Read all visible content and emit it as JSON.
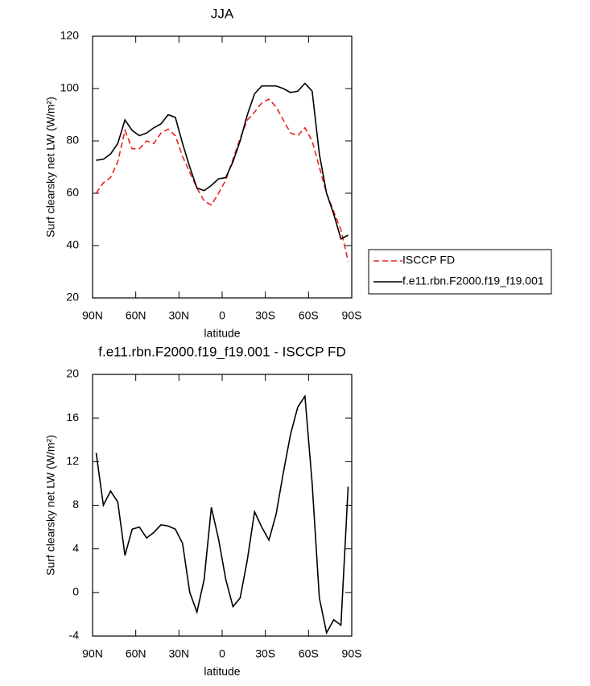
{
  "chart_data": [
    {
      "type": "line",
      "title": "JJA",
      "xlabel": "latitude",
      "ylabel": "Surf clearsky net LW (W/m²)",
      "x": [
        87.5,
        82.5,
        77.5,
        72.5,
        67.5,
        62.5,
        57.5,
        52.5,
        47.5,
        42.5,
        37.5,
        32.5,
        27.5,
        22.5,
        17.5,
        12.5,
        7.5,
        2.5,
        -2.5,
        -7.5,
        -12.5,
        -17.5,
        -22.5,
        -27.5,
        -32.5,
        -37.5,
        -42.5,
        -47.5,
        -52.5,
        -57.5,
        -62.5,
        -67.5,
        -72.5,
        -77.5,
        -82.5,
        -87.5
      ],
      "series": [
        {
          "name": "ISCCP FD",
          "color": "#e8221f",
          "line_style": "dashed",
          "values": [
            60,
            64,
            66,
            72,
            84,
            77,
            77,
            80,
            79,
            83,
            84.5,
            82,
            74,
            68,
            62,
            57,
            55.5,
            60,
            65,
            73,
            81,
            88,
            91,
            94.5,
            96,
            93,
            88,
            83,
            82,
            85,
            80,
            70,
            60,
            53,
            46,
            34
          ]
        },
        {
          "name": "f.e11.rbn.F2000.f19_f19.001",
          "color": "#000000",
          "line_style": "solid",
          "values": [
            72.6,
            73,
            75,
            79,
            88,
            84,
            82,
            83,
            85,
            86.5,
            90,
            89,
            79,
            70,
            62,
            61,
            63,
            65.5,
            66,
            72,
            80,
            90,
            98,
            101,
            101,
            101,
            100,
            98.5,
            99,
            102,
            99,
            75,
            60,
            52,
            42.5,
            44
          ]
        }
      ],
      "xlim": [
        90,
        -90
      ],
      "xticks": [
        {
          "value": 90,
          "label": "90N"
        },
        {
          "value": 60,
          "label": "60N"
        },
        {
          "value": 30,
          "label": "30N"
        },
        0,
        {
          "value": -30,
          "label": "30S"
        },
        {
          "value": -60,
          "label": "60S"
        },
        {
          "value": -90,
          "label": "90S"
        }
      ],
      "ylim": [
        20,
        120
      ],
      "yticks": [
        20,
        40,
        60,
        80,
        100,
        120
      ],
      "legend": "right"
    },
    {
      "type": "line",
      "title": "f.e11.rbn.F2000.f19_f19.001 - ISCCP FD",
      "xlabel": "latitude",
      "ylabel": "Surf clearsky net LW (W/m²)",
      "x": [
        87.5,
        82.5,
        77.5,
        72.5,
        67.5,
        62.5,
        57.5,
        52.5,
        47.5,
        42.5,
        37.5,
        32.5,
        27.5,
        22.5,
        17.5,
        12.5,
        7.5,
        2.5,
        -2.5,
        -7.5,
        -12.5,
        -17.5,
        -22.5,
        -27.5,
        -32.5,
        -37.5,
        -42.5,
        -47.5,
        -52.5,
        -57.5,
        -62.5,
        -67.5,
        -72.5,
        -77.5,
        -82.5,
        -87.5
      ],
      "series": [
        {
          "color": "#000000",
          "line_style": "solid",
          "values": [
            12.8,
            8,
            9.3,
            8.3,
            3.4,
            5.8,
            6,
            5,
            5.5,
            6.2,
            6.1,
            5.8,
            4.5,
            0,
            -1.8,
            1.2,
            7.8,
            4.9,
            1.2,
            -1.3,
            -0.5,
            3,
            7.4,
            6,
            4.8,
            7.2,
            11,
            14.5,
            17,
            18,
            10,
            -0.5,
            -3.7,
            -2.5,
            -3,
            9.7
          ]
        }
      ],
      "xlim": [
        90,
        -90
      ],
      "xticks": [
        {
          "value": 90,
          "label": "90N"
        },
        {
          "value": 60,
          "label": "60N"
        },
        {
          "value": 30,
          "label": "30N"
        },
        0,
        {
          "value": -30,
          "label": "30S"
        },
        {
          "value": -60,
          "label": "60S"
        },
        {
          "value": -90,
          "label": "90S"
        }
      ],
      "ylim": [
        -4,
        20
      ],
      "yticks": [
        -4,
        0,
        4,
        8,
        12,
        16,
        20
      ]
    }
  ]
}
